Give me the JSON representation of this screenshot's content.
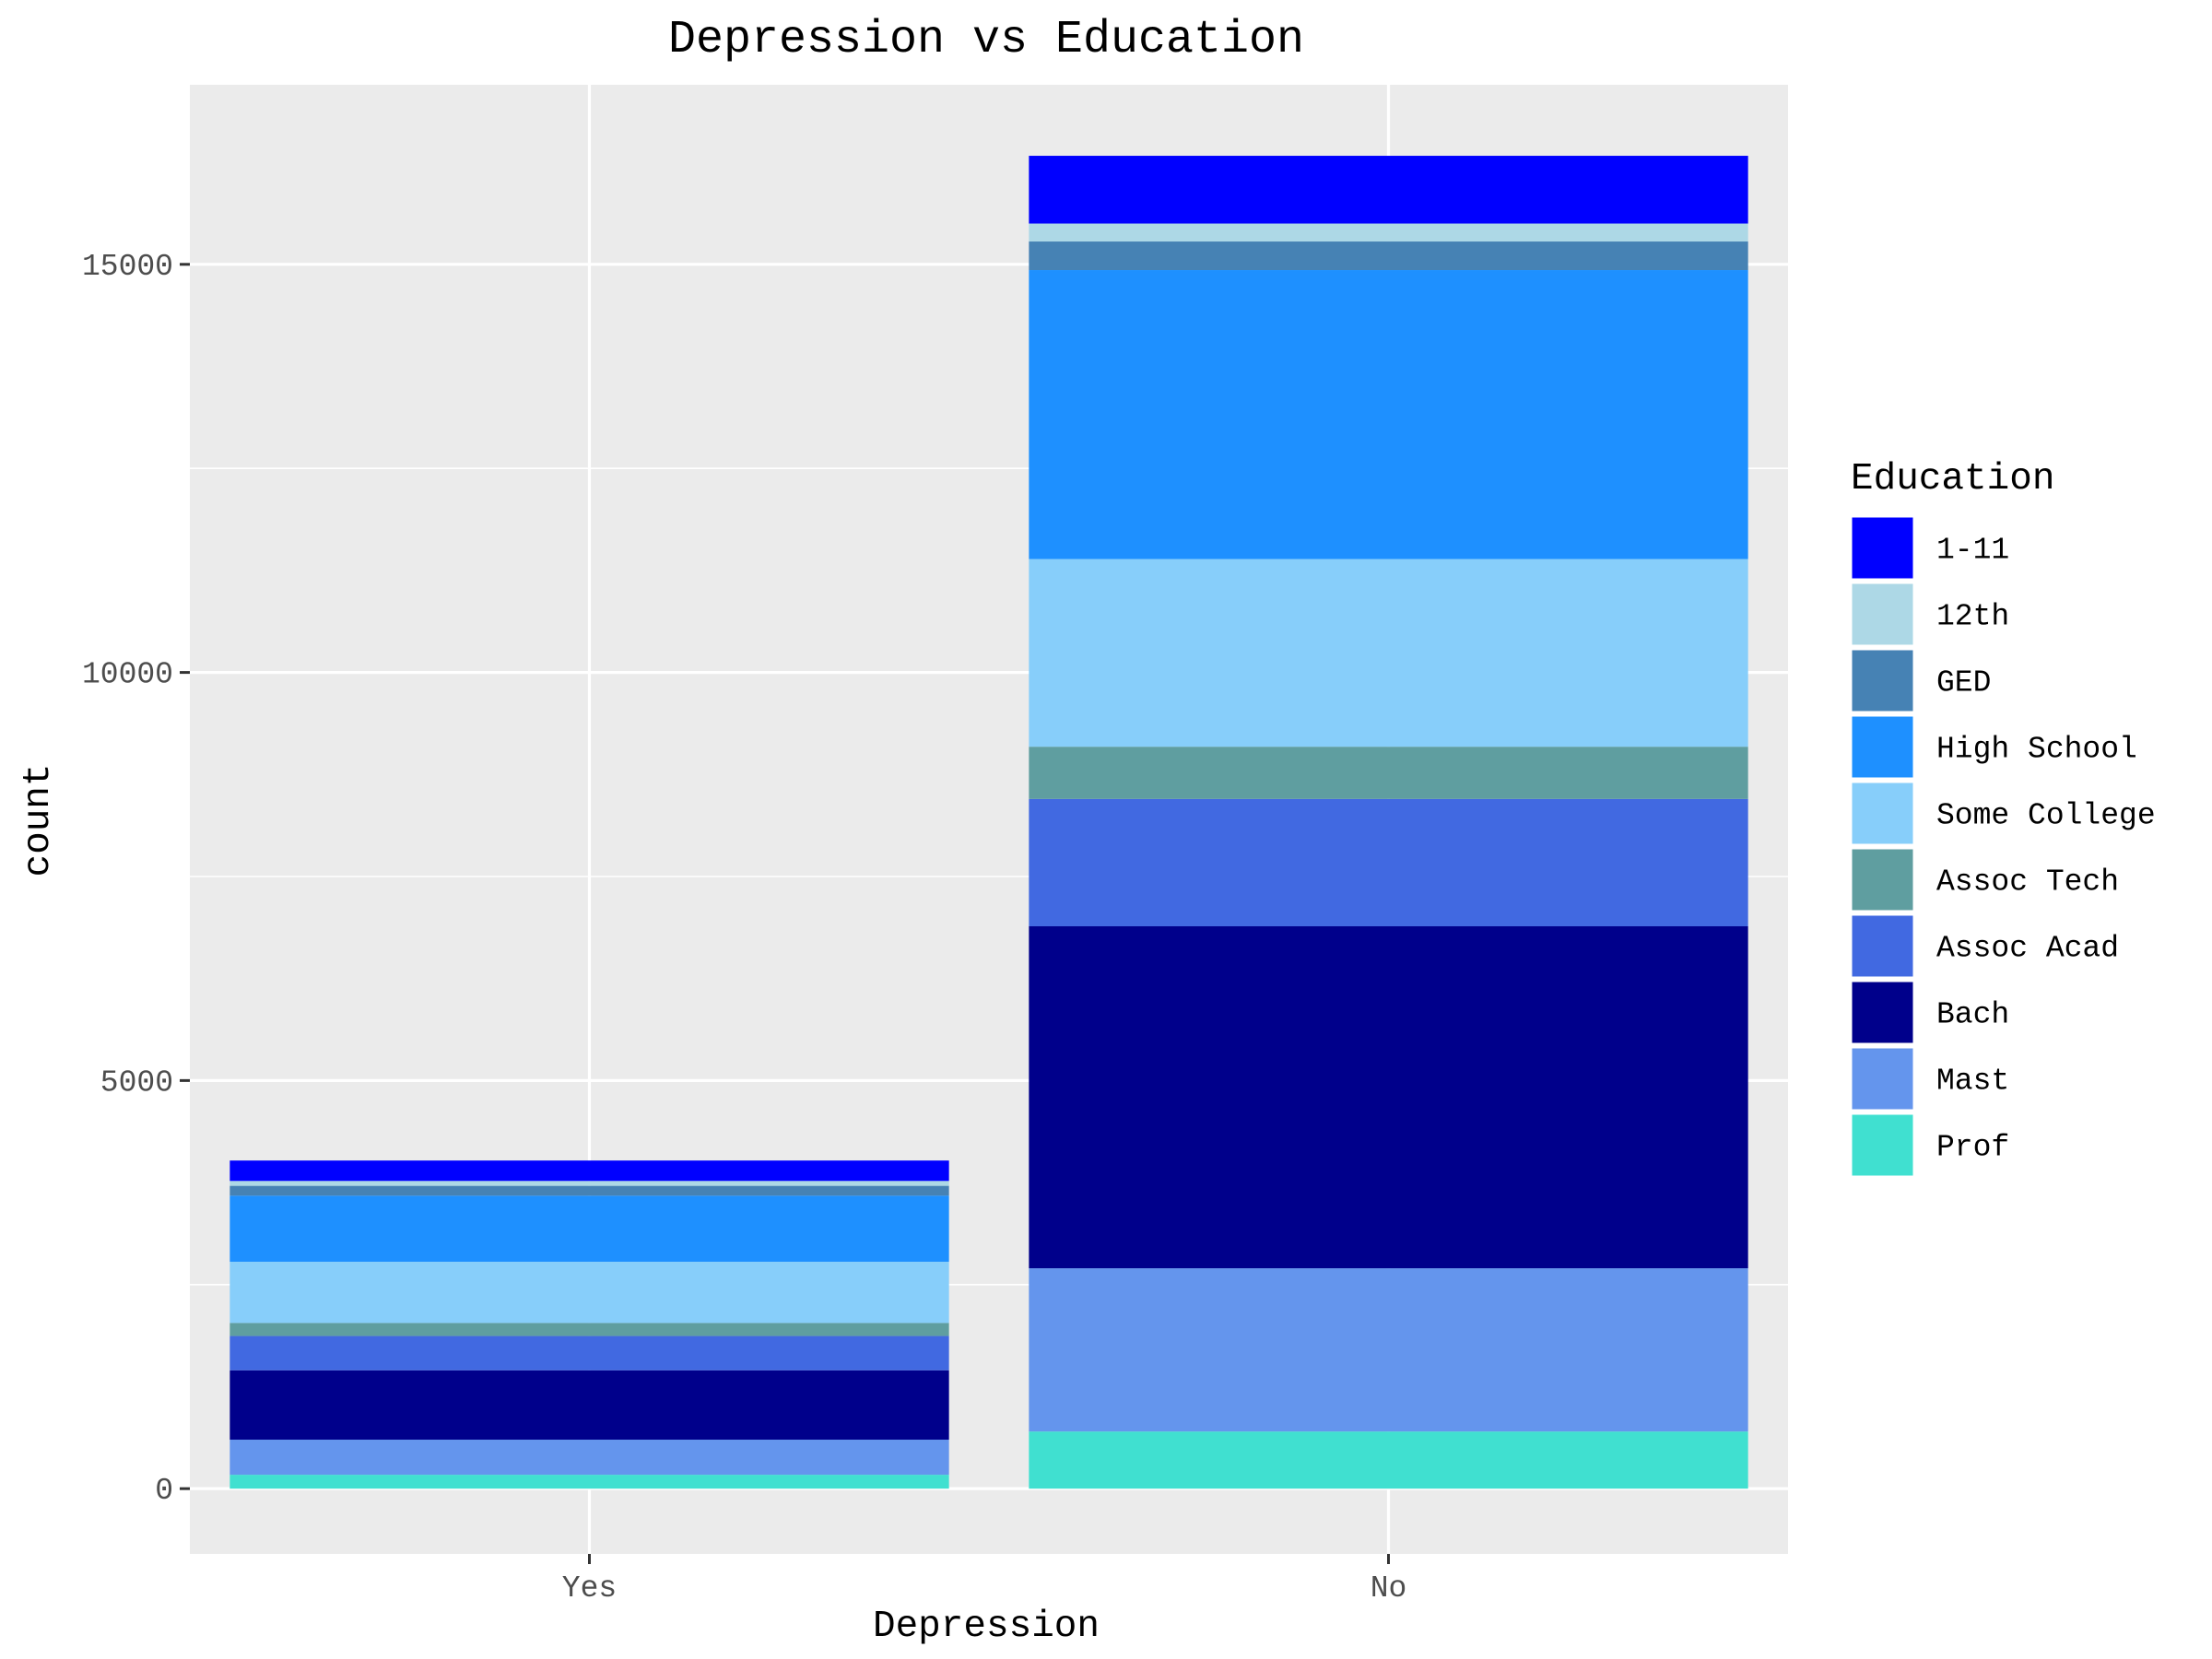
{
  "chart_data": {
    "type": "bar",
    "stacked": true,
    "title": "Depression vs Education",
    "xlabel": "Depression",
    "ylabel": "count",
    "categories": [
      "Yes",
      "No"
    ],
    "ylim": [
      -800,
      17200
    ],
    "yticks": [
      0,
      5000,
      10000,
      15000
    ],
    "grid": true,
    "legend_position": "right",
    "legend_title": "Education",
    "series": [
      {
        "name": "1-11",
        "color": "#0000FF",
        "values": [
          250,
          830
        ]
      },
      {
        "name": "12th",
        "color": "#ADD8E6",
        "values": [
          60,
          220
        ]
      },
      {
        "name": "GED",
        "color": "#4682B4",
        "values": [
          120,
          350
        ]
      },
      {
        "name": "High School",
        "color": "#1E90FF",
        "values": [
          810,
          3540
        ]
      },
      {
        "name": "Some College",
        "color": "#87CEFA",
        "values": [
          750,
          2300
        ]
      },
      {
        "name": "Assoc Tech",
        "color": "#5F9EA0",
        "values": [
          160,
          640
        ]
      },
      {
        "name": "Assoc Acad",
        "color": "#4169E1",
        "values": [
          420,
          1560
        ]
      },
      {
        "name": "Bach",
        "color": "#00008B",
        "values": [
          850,
          4190
        ]
      },
      {
        "name": "Mast",
        "color": "#6495ED",
        "values": [
          430,
          2000
        ]
      },
      {
        "name": "Prof",
        "color": "#40E0D0",
        "values": [
          170,
          700
        ]
      }
    ]
  }
}
